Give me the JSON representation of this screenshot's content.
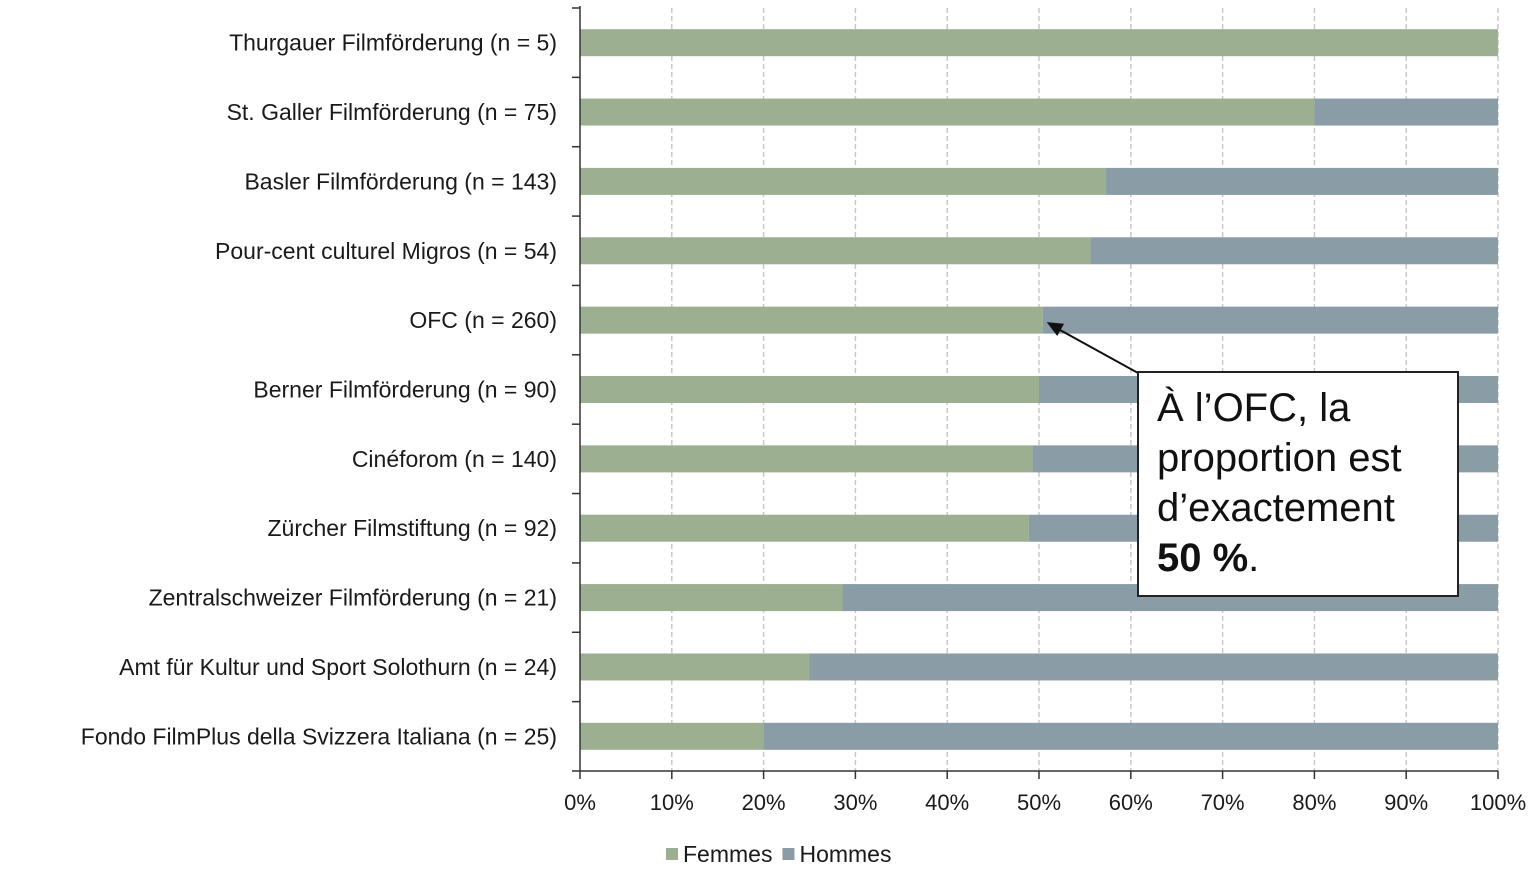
{
  "chart_data": {
    "type": "bar",
    "orientation": "horizontal",
    "stacked": "percent",
    "categories": [
      "Thurgauer Filmförderung (n = 5)",
      "St. Galler Filmförderung (n = 75)",
      "Basler Filmförderung (n = 143)",
      "Pour-cent culturel Migros (n = 54)",
      "OFC (n = 260)",
      "Berner Filmförderung (n = 90)",
      "Cinéforom (n = 140)",
      "Zürcher Filmstiftung (n = 92)",
      "Zentralschweizer Filmförderung (n = 21)",
      "Amt für Kultur und Sport Solothurn (n = 24)",
      "Fondo FilmPlus della Svizzera Italiana (n = 25)"
    ],
    "series": [
      {
        "name": "Femmes",
        "color": "#9caf90",
        "values": [
          100,
          80,
          57.3,
          55.6,
          50.4,
          50.0,
          49.3,
          48.9,
          28.6,
          25.0,
          20.0
        ]
      },
      {
        "name": "Hommes",
        "color": "#8a9ca6",
        "values": [
          0,
          20,
          42.7,
          44.4,
          49.6,
          50.0,
          50.7,
          51.1,
          71.4,
          75.0,
          80.0
        ]
      }
    ],
    "xticks": [
      "0%",
      "10%",
      "20%",
      "30%",
      "40%",
      "50%",
      "60%",
      "70%",
      "80%",
      "90%",
      "100%"
    ],
    "xlim": [
      0,
      100
    ],
    "grid": "vertical dashed",
    "legend_position": "bottom",
    "annotation": {
      "target_category": "OFC (n = 260)",
      "target_value": 50.4,
      "text_plain": "À l’OFC, la proportion est d’exactement",
      "text_bold": "50 %",
      "text_end": "."
    }
  }
}
